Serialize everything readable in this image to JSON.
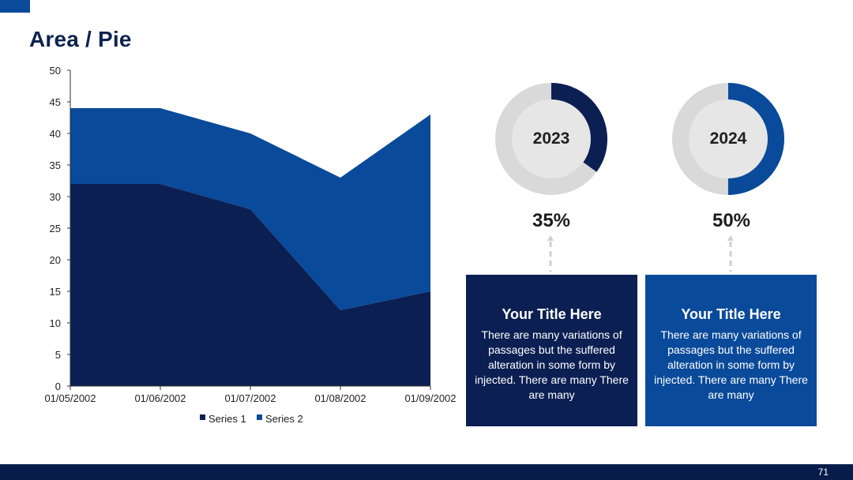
{
  "title": "Area / Pie",
  "page_number": "71",
  "colors": {
    "series1": "#0b1f52",
    "series2": "#0a4a9a",
    "donut_track": "#d9d9d9",
    "donut_center": "#e6e6e6"
  },
  "chart_data": [
    {
      "type": "area",
      "stacked": true,
      "categories": [
        "01/05/2002",
        "01/06/2002",
        "01/07/2002",
        "01/08/2002",
        "01/09/2002"
      ],
      "series": [
        {
          "name": "Series 1",
          "values": [
            32,
            32,
            28,
            12,
            15
          ]
        },
        {
          "name": "Series 2",
          "values": [
            12,
            12,
            12,
            21,
            28
          ]
        }
      ],
      "ylim": [
        0,
        50
      ],
      "yticks": [
        "0",
        "5",
        "10",
        "15",
        "20",
        "25",
        "30",
        "35",
        "40",
        "45",
        "50"
      ],
      "grid": false,
      "legend": "bottom"
    },
    {
      "type": "pie",
      "donut": true,
      "center_label": "2023",
      "value_label": "35%",
      "values": [
        35,
        65
      ],
      "colors": [
        "#0b1f52",
        "#d9d9d9"
      ]
    },
    {
      "type": "pie",
      "donut": true,
      "center_label": "2024",
      "value_label": "50%",
      "values": [
        50,
        50
      ],
      "colors": [
        "#0a4a9a",
        "#d9d9d9"
      ]
    }
  ],
  "cards": [
    {
      "title": "Your Title Here",
      "body": "There are many variations of passages but the suffered alteration in some form by injected. There are many There are many",
      "color": "#0b1f52"
    },
    {
      "title": "Your Title Here",
      "body": "There are many variations of passages but the suffered alteration in some form by injected. There are many There are many",
      "color": "#0a4a9a"
    }
  ]
}
